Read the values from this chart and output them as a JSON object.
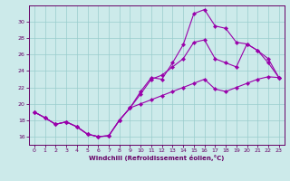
{
  "xlabel": "Windchill (Refroidissement éolien,°C)",
  "bg_color": "#cceaea",
  "line_color": "#9900aa",
  "grid_color": "#99cccc",
  "axis_color": "#660066",
  "text_color": "#660066",
  "xlim": [
    -0.5,
    23.5
  ],
  "ylim": [
    15.0,
    32.0
  ],
  "yticks": [
    16,
    18,
    20,
    22,
    24,
    26,
    28,
    30
  ],
  "xticks": [
    0,
    1,
    2,
    3,
    4,
    5,
    6,
    7,
    8,
    9,
    10,
    11,
    12,
    13,
    14,
    15,
    16,
    17,
    18,
    19,
    20,
    21,
    22,
    23
  ],
  "line1_x": [
    0,
    1,
    2,
    3,
    4,
    5,
    6,
    7,
    8,
    9,
    10,
    11,
    12,
    13,
    14,
    15,
    16,
    17,
    18,
    19,
    20,
    21,
    22,
    23
  ],
  "line1_y": [
    19.0,
    18.3,
    17.5,
    17.8,
    17.2,
    16.3,
    16.0,
    16.1,
    18.0,
    19.5,
    21.5,
    23.2,
    23.0,
    25.0,
    27.2,
    31.0,
    31.5,
    29.5,
    29.2,
    27.5,
    27.3,
    26.5,
    25.5,
    23.2
  ],
  "line2_x": [
    0,
    1,
    2,
    3,
    4,
    5,
    6,
    7,
    8,
    9,
    10,
    11,
    12,
    13,
    14,
    15,
    16,
    17,
    18,
    19,
    20,
    21,
    22,
    23
  ],
  "line2_y": [
    19.0,
    18.3,
    17.5,
    17.8,
    17.2,
    16.3,
    16.0,
    16.1,
    18.0,
    19.5,
    21.2,
    23.0,
    23.5,
    24.5,
    25.5,
    27.5,
    27.8,
    25.5,
    25.0,
    24.5,
    27.3,
    26.5,
    25.0,
    23.2
  ],
  "line3_x": [
    0,
    1,
    2,
    3,
    4,
    5,
    6,
    7,
    8,
    9,
    10,
    11,
    12,
    13,
    14,
    15,
    16,
    17,
    18,
    19,
    20,
    21,
    22,
    23
  ],
  "line3_y": [
    19.0,
    18.3,
    17.5,
    17.8,
    17.2,
    16.3,
    16.0,
    16.1,
    18.0,
    19.5,
    20.0,
    20.5,
    21.0,
    21.5,
    22.0,
    22.5,
    23.0,
    21.8,
    21.5,
    22.0,
    22.5,
    23.0,
    23.3,
    23.2
  ]
}
